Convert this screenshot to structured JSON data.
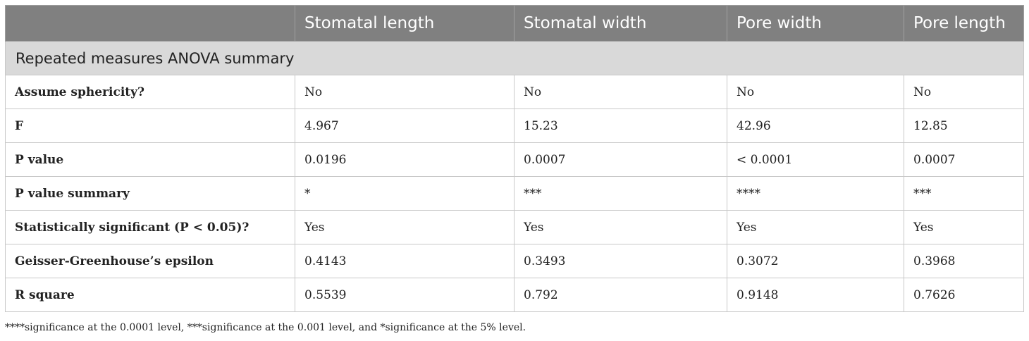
{
  "table": {
    "header": [
      "",
      "Stomatal length",
      "Stomatal width",
      "Pore width",
      "Pore length"
    ],
    "section_title": "Repeated measures ANOVA summary",
    "rows": [
      {
        "label": "Assume sphericity?",
        "values": [
          "No",
          "No",
          "No",
          "No"
        ]
      },
      {
        "label": "F",
        "values": [
          "4.967",
          "15.23",
          "42.96",
          "12.85"
        ]
      },
      {
        "label": "P value",
        "values": [
          "0.0196",
          "0.0007",
          "< 0.0001",
          "0.0007"
        ]
      },
      {
        "label": "P value summary",
        "values": [
          "*",
          "***",
          "****",
          "***"
        ]
      },
      {
        "label": "Statistically significant (P < 0.05)?",
        "values": [
          "Yes",
          "Yes",
          "Yes",
          "Yes"
        ]
      },
      {
        "label": "Geisser-Greenhouse’s epsilon",
        "values": [
          "0.4143",
          "0.3493",
          "0.3072",
          "0.3968"
        ]
      },
      {
        "label": "R square",
        "values": [
          "0.5539",
          "0.792",
          "0.9148",
          "0.7626"
        ]
      }
    ]
  },
  "footnote": "****significance at the 0.0001 level, ***significance at the 0.001 level, and *significance at the 5% level.",
  "colors": {
    "header_bg": "#808080",
    "section_bg": "#d9d9d9",
    "border": "#c8c8c8"
  }
}
